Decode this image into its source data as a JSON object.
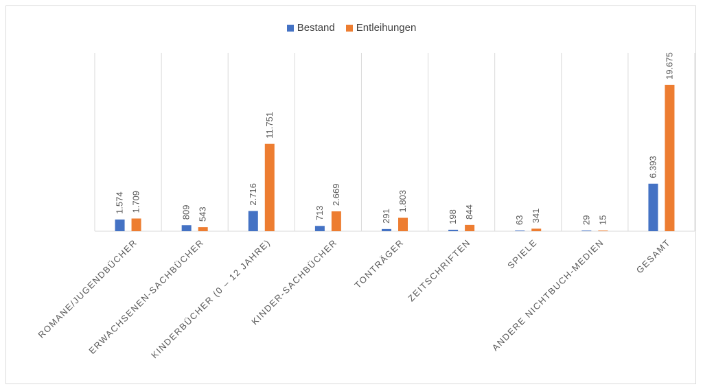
{
  "chart_data": {
    "type": "bar",
    "categories": [
      "ROMANE/JUGENDBÜCHER",
      "ERWACHSENEN-SACHBÜCHER",
      "KINDERBÜCHER (0 – 12 JAHRE)",
      "KINDER-SACHBÜCHER",
      "TONTRÄGER",
      "ZEITSCHRIFTEN",
      "SPIELE",
      "ANDERE NICHTBUCH-MEDIEN",
      "GESAMT"
    ],
    "series": [
      {
        "name": "Bestand",
        "color": "#4472c4",
        "values": [
          1574,
          809,
          2716,
          713,
          291,
          198,
          63,
          29,
          6393
        ],
        "labels": [
          "1.574",
          "809",
          "2.716",
          "713",
          "291",
          "198",
          "63",
          "29",
          "6.393"
        ]
      },
      {
        "name": "Entleihungen",
        "color": "#ed7d31",
        "values": [
          1709,
          543,
          11751,
          2669,
          1803,
          844,
          341,
          15,
          19675
        ],
        "labels": [
          "1.709",
          "543",
          "11.751",
          "2.669",
          "1.803",
          "844",
          "341",
          "15",
          "19.675"
        ]
      }
    ],
    "title": "",
    "xlabel": "",
    "ylabel": "",
    "ylim": [
      0,
      25000
    ],
    "legend_position": "top-center",
    "grid": "vertical category separators"
  }
}
